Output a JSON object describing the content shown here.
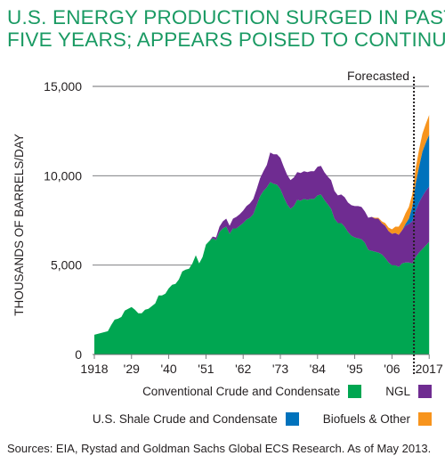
{
  "title_lines": [
    "U.S. ENERGY PRODUCTION SURGED IN PAST",
    "FIVE YEARS; APPEARS POISED TO CONTINUE"
  ],
  "source": "Sources: EIA, Rystad and Goldman Sachs Global ECS Research. As of May 2013.",
  "chart_data": {
    "type": "area",
    "stacked": true,
    "title": "U.S. ENERGY PRODUCTION SURGED IN PAST FIVE YEARS; APPEARS POISED TO CONTINUE",
    "ylabel": "THOUSANDS OF BARRELS/DAY",
    "xlabel": "",
    "xlim": [
      1918,
      2018
    ],
    "ylim": [
      0,
      15000
    ],
    "x_tick_labels": [
      {
        "x": 1918,
        "label": "1918"
      },
      {
        "x": 1929,
        "label": "'29"
      },
      {
        "x": 1940,
        "label": "'40"
      },
      {
        "x": 1951,
        "label": "'51"
      },
      {
        "x": 1962,
        "label": "'62"
      },
      {
        "x": 1973,
        "label": "'73"
      },
      {
        "x": 1984,
        "label": "'84"
      },
      {
        "x": 1995,
        "label": "'95"
      },
      {
        "x": 2006,
        "label": "'06"
      },
      {
        "x": 2017,
        "label": "2017"
      }
    ],
    "y_tick_labels": [
      {
        "y": 0,
        "label": "0"
      },
      {
        "y": 5000,
        "label": "5,000"
      },
      {
        "y": 10000,
        "label": "10,000"
      },
      {
        "y": 15000,
        "label": "15,000"
      }
    ],
    "forecast_start": 2012.5,
    "forecast_label": "Forecasted",
    "legend_position": "bottom-right",
    "x": [
      1918,
      1920,
      1922,
      1923,
      1924,
      1925,
      1926,
      1927,
      1928,
      1929,
      1930,
      1931,
      1932,
      1933,
      1934,
      1935,
      1936,
      1937,
      1938,
      1939,
      1940,
      1941,
      1942,
      1943,
      1944,
      1945,
      1946,
      1947,
      1948,
      1949,
      1950,
      1951,
      1952,
      1953,
      1954,
      1955,
      1956,
      1957,
      1958,
      1959,
      1960,
      1961,
      1962,
      1963,
      1964,
      1965,
      1966,
      1967,
      1968,
      1969,
      1970,
      1971,
      1972,
      1973,
      1974,
      1975,
      1976,
      1977,
      1978,
      1979,
      1980,
      1981,
      1982,
      1983,
      1984,
      1985,
      1986,
      1987,
      1988,
      1989,
      1990,
      1991,
      1992,
      1993,
      1994,
      1995,
      1996,
      1997,
      1998,
      1999,
      2000,
      2001,
      2002,
      2003,
      2004,
      2005,
      2006,
      2007,
      2008,
      2009,
      2010,
      2011,
      2012,
      2013,
      2014,
      2015,
      2016,
      2017
    ],
    "series": [
      {
        "name": "Conventional Crude and Condensate",
        "color": "#00a651",
        "values": [
          1100,
          1200,
          1300,
          1650,
          1950,
          2000,
          2100,
          2450,
          2550,
          2650,
          2500,
          2300,
          2300,
          2500,
          2550,
          2700,
          2850,
          3300,
          3300,
          3400,
          3700,
          3900,
          3950,
          4200,
          4650,
          4750,
          4800,
          5100,
          5550,
          5100,
          5450,
          6150,
          6350,
          6500,
          6400,
          6850,
          7050,
          7150,
          6750,
          7050,
          7050,
          7200,
          7350,
          7550,
          7650,
          7850,
          8350,
          8850,
          9150,
          9350,
          9650,
          9550,
          9500,
          9250,
          8800,
          8400,
          8150,
          8300,
          8650,
          8600,
          8700,
          8650,
          8700,
          8700,
          8900,
          8950,
          8650,
          8400,
          8150,
          7600,
          7350,
          7350,
          7150,
          6850,
          6650,
          6550,
          6500,
          6450,
          6250,
          5850,
          5800,
          5750,
          5700,
          5600,
          5400,
          5150,
          5000,
          5000,
          4900,
          5100,
          5150,
          5150,
          5100,
          5450,
          5700,
          5900,
          6100,
          6300
        ]
      },
      {
        "name": "NGL",
        "color": "#6f2c91",
        "values": [
          0,
          0,
          0,
          0,
          0,
          0,
          0,
          0,
          0,
          0,
          0,
          0,
          0,
          0,
          0,
          0,
          0,
          0,
          0,
          0,
          0,
          0,
          0,
          0,
          0,
          0,
          0,
          0,
          0,
          0,
          0,
          0,
          0,
          100,
          150,
          300,
          400,
          450,
          450,
          550,
          650,
          650,
          700,
          750,
          800,
          850,
          900,
          1000,
          1100,
          1250,
          1650,
          1650,
          1700,
          1750,
          1700,
          1650,
          1600,
          1600,
          1550,
          1550,
          1550,
          1550,
          1550,
          1550,
          1600,
          1600,
          1550,
          1550,
          1600,
          1550,
          1550,
          1600,
          1650,
          1650,
          1700,
          1750,
          1800,
          1800,
          1750,
          1800,
          1900,
          1850,
          1900,
          1750,
          1800,
          1750,
          1750,
          1800,
          1800,
          1850,
          2050,
          2150,
          2350,
          2600,
          2800,
          2950,
          3050,
          3100
        ]
      },
      {
        "name": "U.S. Shale Crude and Condensate",
        "color": "#0072bc",
        "values": [
          0,
          0,
          0,
          0,
          0,
          0,
          0,
          0,
          0,
          0,
          0,
          0,
          0,
          0,
          0,
          0,
          0,
          0,
          0,
          0,
          0,
          0,
          0,
          0,
          0,
          0,
          0,
          0,
          0,
          0,
          0,
          0,
          0,
          0,
          0,
          0,
          0,
          0,
          0,
          0,
          0,
          0,
          0,
          0,
          0,
          0,
          0,
          0,
          0,
          0,
          0,
          0,
          0,
          0,
          0,
          0,
          0,
          0,
          0,
          0,
          0,
          0,
          0,
          0,
          0,
          0,
          0,
          0,
          0,
          0,
          0,
          0,
          0,
          0,
          0,
          0,
          0,
          0,
          0,
          0,
          0,
          0,
          0,
          0,
          0,
          0,
          0,
          0,
          0,
          0,
          100,
          300,
          800,
          1500,
          2000,
          2500,
          2700,
          2900
        ]
      },
      {
        "name": "Biofuels & Other",
        "color": "#f7941d",
        "values": [
          0,
          0,
          0,
          0,
          0,
          0,
          0,
          0,
          0,
          0,
          0,
          0,
          0,
          0,
          0,
          0,
          0,
          0,
          0,
          0,
          0,
          0,
          0,
          0,
          0,
          0,
          0,
          0,
          0,
          0,
          0,
          0,
          0,
          0,
          0,
          0,
          0,
          0,
          0,
          0,
          0,
          0,
          0,
          0,
          0,
          0,
          0,
          0,
          0,
          0,
          0,
          0,
          0,
          0,
          0,
          0,
          0,
          0,
          0,
          0,
          0,
          0,
          0,
          0,
          0,
          0,
          0,
          0,
          0,
          0,
          0,
          0,
          0,
          0,
          0,
          0,
          0,
          0,
          0,
          0,
          0,
          50,
          50,
          100,
          150,
          200,
          250,
          350,
          450,
          500,
          600,
          650,
          700,
          850,
          950,
          1000,
          1050,
          1100
        ]
      }
    ]
  },
  "legend_rows": [
    [
      {
        "label": "Conventional Crude and Condensate",
        "color": "#00a651"
      },
      {
        "label": "NGL",
        "color": "#6f2c91"
      }
    ],
    [
      {
        "label": "U.S. Shale Crude and Condensate",
        "color": "#0072bc"
      },
      {
        "label": "Biofuels & Other",
        "color": "#f7941d"
      }
    ]
  ]
}
